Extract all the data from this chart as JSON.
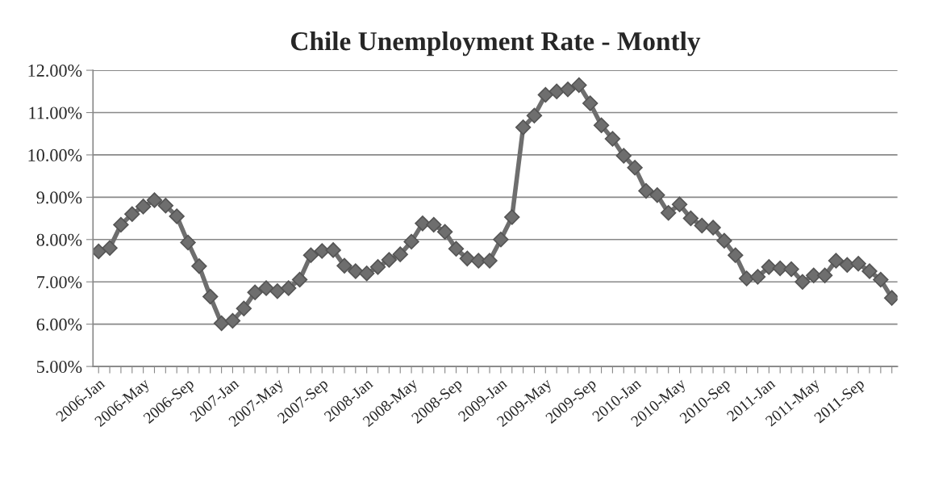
{
  "chart_data": {
    "type": "line",
    "title": "Chile Unemployment Rate - Montly",
    "categories": [
      "2006-Jan",
      null,
      null,
      null,
      "2006-May",
      null,
      null,
      null,
      "2006-Sep",
      null,
      null,
      null,
      "2007-Jan",
      null,
      null,
      null,
      "2007-May",
      null,
      null,
      null,
      "2007-Sep",
      null,
      null,
      null,
      "2008-Jan",
      null,
      null,
      null,
      "2008-May",
      null,
      null,
      null,
      "2008-Sep",
      null,
      null,
      null,
      "2009-Jan",
      null,
      null,
      null,
      "2009-May",
      null,
      null,
      null,
      "2009-Sep",
      null,
      null,
      null,
      "2010-Jan",
      null,
      null,
      null,
      "2010-May",
      null,
      null,
      null,
      "2010-Sep",
      null,
      null,
      null,
      "2011-Jan",
      null,
      null,
      null,
      "2011-May",
      null,
      null,
      null,
      "2011-Sep",
      null,
      null,
      null
    ],
    "series": [
      {
        "color": "#6e6e6e",
        "values": [
          7.72,
          7.8,
          8.35,
          8.6,
          8.78,
          8.93,
          8.8,
          8.55,
          7.93,
          7.37,
          6.65,
          6.02,
          6.08,
          6.37,
          6.75,
          6.85,
          6.78,
          6.85,
          7.05,
          7.63,
          7.73,
          7.75,
          7.38,
          7.25,
          7.2,
          7.35,
          7.52,
          7.65,
          7.95,
          8.38,
          8.35,
          8.18,
          7.78,
          7.55,
          7.5,
          7.5,
          8.0,
          8.53,
          10.65,
          10.93,
          11.42,
          11.5,
          11.55,
          11.65,
          11.22,
          10.7,
          10.38,
          9.98,
          9.7,
          9.15,
          9.05,
          8.63,
          8.83,
          8.5,
          8.33,
          8.28,
          7.97,
          7.63,
          7.08,
          7.12,
          7.35,
          7.32,
          7.3,
          7.0,
          7.15,
          7.15,
          7.5,
          7.4,
          7.43,
          7.25,
          7.05,
          6.62
        ]
      }
    ],
    "ylim": [
      5,
      12
    ],
    "yticks": [
      {
        "value": 5,
        "label": "5.00%"
      },
      {
        "value": 6,
        "label": "6.00%"
      },
      {
        "value": 7,
        "label": "7.00%"
      },
      {
        "value": 8,
        "label": "8.00%"
      },
      {
        "value": 9,
        "label": "9.00%"
      },
      {
        "value": 10,
        "label": "10.00%"
      },
      {
        "value": 11,
        "label": "11.00%"
      },
      {
        "value": 12,
        "label": "12.00%"
      }
    ],
    "grid": "y",
    "marker": "diamond",
    "line_style": "solid"
  }
}
